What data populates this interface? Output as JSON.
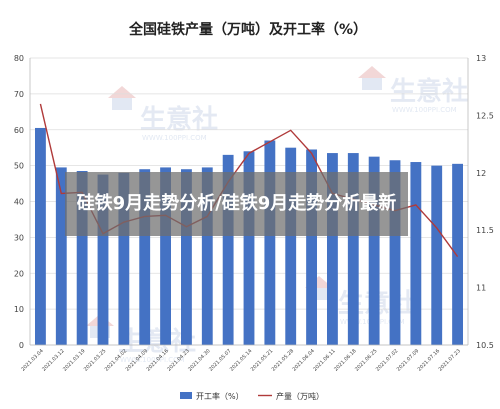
{
  "overlay": {
    "text": "硅铁9月走势分析/硅铁9月走势分析最新"
  },
  "watermark": {
    "text": "生意社",
    "url": "WWW.100PPI.COM"
  },
  "colors": {
    "bar": "#4472c4",
    "line": "#b03a3a",
    "grid": "#dddddd"
  },
  "chart_data": {
    "type": "bar+line",
    "title": "全国硅铁产量（万吨）及开工率（%）",
    "categories": [
      "2021.03.04",
      "2021.03.12",
      "2021.03.19",
      "2021.03.25",
      "2021.04.02",
      "2021.04.09",
      "2021.04.16",
      "2021.04.23",
      "2021.04.30",
      "2021.05.07",
      "2021.05.14",
      "2021.05.21",
      "2021.05.28",
      "2021.06.04",
      "2021.06.11",
      "2021.06.18",
      "2021.06.25",
      "2021.07.02",
      "2021.07.09",
      "2021.07.16",
      "2021.07.23"
    ],
    "series": [
      {
        "name": "开工率（%）",
        "type": "bar",
        "axis": "left",
        "values": [
          60.5,
          49.5,
          48.5,
          47.5,
          48,
          49,
          49.5,
          49,
          49.5,
          53,
          54,
          57,
          55,
          54.5,
          53.5,
          53.5,
          52.5,
          51.5,
          51,
          50,
          50.5
        ]
      },
      {
        "name": "产量（万吨）",
        "type": "line",
        "axis": "right",
        "values": [
          12.6,
          11.82,
          11.83,
          11.47,
          11.57,
          11.62,
          11.63,
          11.53,
          11.62,
          11.92,
          12.17,
          12.27,
          12.37,
          12.17,
          11.82,
          11.77,
          11.72,
          11.67,
          11.72,
          11.52,
          11.27
        ]
      }
    ],
    "y_left": {
      "min": 0,
      "max": 80,
      "ticks": [
        "0",
        "10",
        "20",
        "30",
        "40",
        "50",
        "60",
        "70",
        "80"
      ]
    },
    "y_right": {
      "min": 10.5,
      "max": 13,
      "ticks": [
        "10.5",
        "11",
        "11.5",
        "12",
        "12.5",
        "13"
      ]
    },
    "grid": true,
    "legend_position": "bottom"
  }
}
